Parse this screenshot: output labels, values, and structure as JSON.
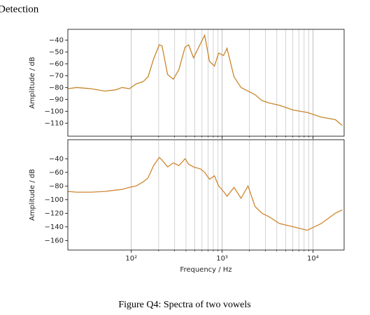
{
  "header": "Detection",
  "caption": "Figure Q4: Spectra of two vowels",
  "chart_data": [
    {
      "type": "line",
      "ylabel": "Amplitude / dB",
      "xscale": "log",
      "grid": "x",
      "xlim": [
        20,
        22050
      ],
      "ylim": [
        -121,
        -31
      ],
      "xticks": [
        100,
        1000,
        10000
      ],
      "xminorticks": [
        200,
        300,
        400,
        500,
        600,
        700,
        800,
        900,
        2000,
        3000,
        4000,
        5000,
        6000,
        7000,
        8000,
        9000
      ],
      "yticks": [
        {
          "value": -40,
          "label": "−40"
        },
        {
          "value": -50,
          "label": "−50"
        },
        {
          "value": -60,
          "label": "−60"
        },
        {
          "value": -70,
          "label": "−70"
        },
        {
          "value": -80,
          "label": "−80"
        },
        {
          "value": -90,
          "label": "−90"
        },
        {
          "value": -100,
          "label": "−100"
        },
        {
          "value": -110,
          "label": "−110"
        }
      ],
      "x": [
        20,
        25,
        36,
        51,
        67,
        79,
        95,
        113,
        135,
        153,
        176,
        203,
        218,
        251,
        290,
        334,
        391,
        428,
        484,
        578,
        642,
        727,
        823,
        916,
        1036,
        1132,
        1352,
        1614,
        1928,
        2301,
        2743,
        3275,
        4273,
        6096,
        8670,
        12360,
        17620,
        21040
      ],
      "series": [
        {
          "color": "#c8862a",
          "values": [
            -81,
            -80,
            -81,
            -83,
            -82,
            -80,
            -81,
            -77,
            -75,
            -71,
            -56,
            -44,
            -45,
            -69,
            -73,
            -65,
            -46,
            -44,
            -55,
            -43,
            -36,
            -58,
            -62,
            -51,
            -53,
            -47,
            -71,
            -80,
            -83,
            -86,
            -91,
            -93,
            -95,
            -99,
            -101,
            -105,
            -107,
            -112
          ]
        }
      ]
    },
    {
      "type": "line",
      "ylabel": "Amplitude / dB",
      "xlabel": "Frequency / Hz",
      "xscale": "log",
      "grid": "x",
      "xlim": [
        20,
        22050
      ],
      "ylim": [
        -174,
        -12
      ],
      "xticks": [
        {
          "value": 100,
          "label": "10²"
        },
        {
          "value": 1000,
          "label": "10³"
        },
        {
          "value": 10000,
          "label": "10⁴"
        }
      ],
      "xminorticks": [
        200,
        300,
        400,
        500,
        600,
        700,
        800,
        900,
        2000,
        3000,
        4000,
        5000,
        6000,
        7000,
        8000,
        9000
      ],
      "yticks": [
        {
          "value": -40,
          "label": "−40"
        },
        {
          "value": -60,
          "label": "−60"
        },
        {
          "value": -80,
          "label": "−80"
        },
        {
          "value": -100,
          "label": "−100"
        },
        {
          "value": -120,
          "label": "−120"
        },
        {
          "value": -140,
          "label": "−140"
        },
        {
          "value": -160,
          "label": "−160"
        }
      ],
      "x": [
        20,
        25,
        36,
        51,
        67,
        79,
        95,
        113,
        135,
        153,
        176,
        203,
        218,
        251,
        290,
        334,
        391,
        428,
        484,
        578,
        642,
        727,
        823,
        916,
        1036,
        1132,
        1352,
        1614,
        1928,
        2301,
        2743,
        3275,
        4273,
        6096,
        8670,
        12360,
        17620,
        21040
      ],
      "series": [
        {
          "color": "#d0862f",
          "values": [
            -88,
            -89,
            -89,
            -88,
            -86,
            -85,
            -82,
            -80,
            -74,
            -68,
            -50,
            -38,
            -42,
            -52,
            -46,
            -50,
            -40,
            -48,
            -52,
            -55,
            -60,
            -70,
            -65,
            -80,
            -88,
            -95,
            -82,
            -98,
            -80,
            -110,
            -120,
            -125,
            -135,
            -140,
            -145,
            -135,
            -120,
            -115
          ]
        }
      ]
    }
  ]
}
